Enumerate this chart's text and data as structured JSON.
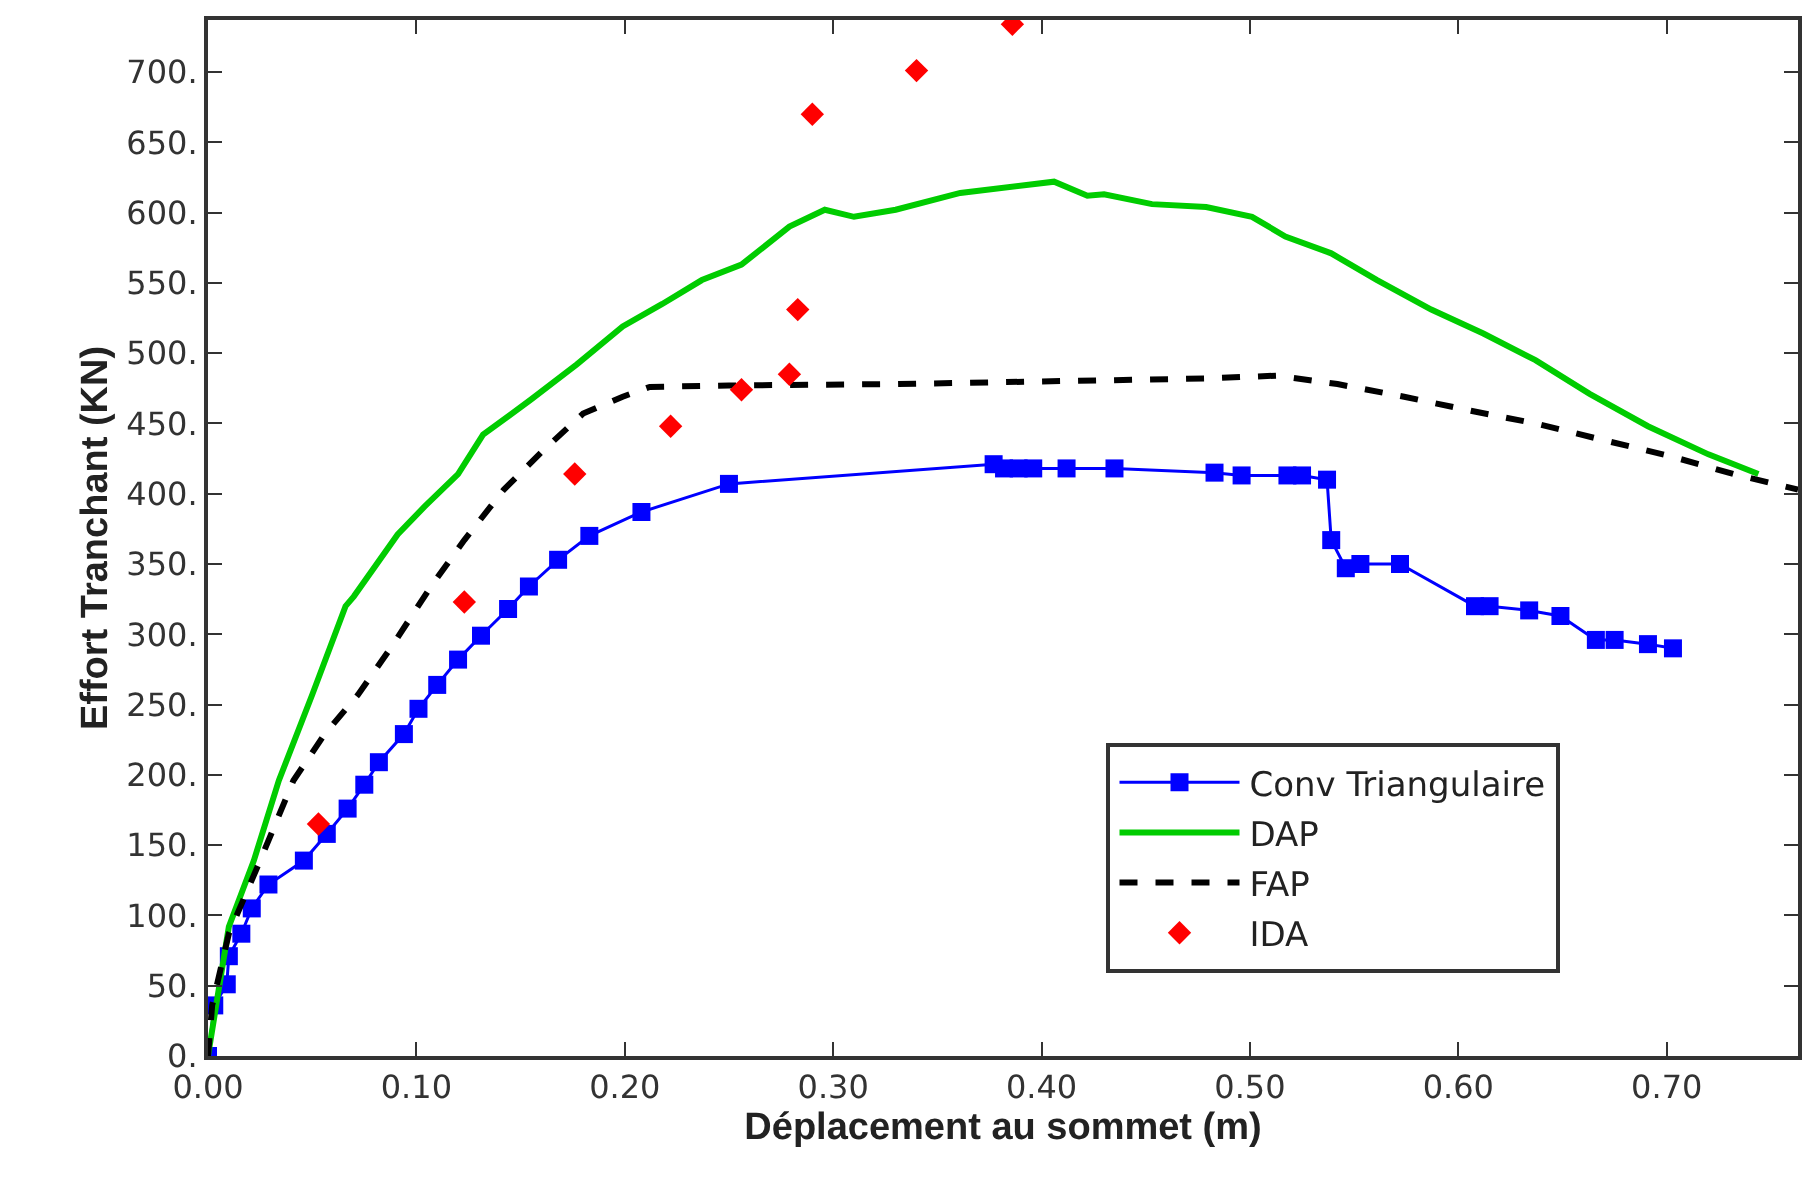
{
  "chart_data": {
    "type": "line",
    "xlabel": "Déplacement au sommet (m)",
    "ylabel": "Effort Tranchant (KN)",
    "xlim": [
      0,
      0.763
    ],
    "ylim": [
      0,
      737
    ],
    "xticks": [
      {
        "value": 0,
        "label": "0.00"
      },
      {
        "value": 0.1,
        "label": "0.10"
      },
      {
        "value": 0.2,
        "label": "0.20"
      },
      {
        "value": 0.3,
        "label": "0.30"
      },
      {
        "value": 0.4,
        "label": "0.40"
      },
      {
        "value": 0.5,
        "label": "0.50"
      },
      {
        "value": 0.6,
        "label": "0.60"
      },
      {
        "value": 0.7,
        "label": "0.70"
      }
    ],
    "yticks": [
      {
        "value": 0,
        "label": "0."
      },
      {
        "value": 50,
        "label": "50."
      },
      {
        "value": 100,
        "label": "100."
      },
      {
        "value": 150,
        "label": "150."
      },
      {
        "value": 200,
        "label": "200."
      },
      {
        "value": 250,
        "label": "250."
      },
      {
        "value": 300,
        "label": "300."
      },
      {
        "value": 350,
        "label": "350."
      },
      {
        "value": 400,
        "label": "400."
      },
      {
        "value": 450,
        "label": "450."
      },
      {
        "value": 500,
        "label": "500."
      },
      {
        "value": 550,
        "label": "550."
      },
      {
        "value": 600,
        "label": "600."
      },
      {
        "value": 650,
        "label": "650."
      },
      {
        "value": 700,
        "label": "700."
      }
    ],
    "legend": "bottom right",
    "series": [
      {
        "name": "Conv Triangulaire",
        "color": "#0000ff",
        "marker": "square",
        "line_style": "solid",
        "x": [
          0,
          0.003,
          0.009,
          0.01,
          0.016,
          0.021,
          0.029,
          0.046,
          0.057,
          0.067,
          0.075,
          0.082,
          0.094,
          0.101,
          0.11,
          0.12,
          0.131,
          0.144,
          0.154,
          0.168,
          0.183,
          0.208,
          0.25,
          0.377,
          0.382,
          0.389,
          0.396,
          0.412,
          0.435,
          0.483,
          0.496,
          0.518,
          0.525,
          0.537,
          0.539,
          0.546,
          0.553,
          0.572,
          0.608,
          0.615,
          0.634,
          0.649,
          0.666,
          0.675,
          0.691,
          0.703
        ],
        "values": [
          0,
          36,
          51,
          71,
          87,
          105,
          122,
          139,
          158,
          176,
          193,
          209,
          229,
          247,
          264,
          282,
          299,
          318,
          334,
          353,
          370,
          387,
          407,
          421,
          418,
          418,
          418,
          418,
          418,
          415,
          413,
          413,
          413,
          410,
          367,
          347,
          350,
          350,
          320,
          320,
          317,
          313,
          296,
          296,
          293,
          290
        ]
      },
      {
        "name": "DAP",
        "color": "#00cc00",
        "marker": "none",
        "line_style": "solid",
        "x": [
          0,
          0.01,
          0.022,
          0.034,
          0.05,
          0.066,
          0.07,
          0.091,
          0.104,
          0.12,
          0.132,
          0.155,
          0.177,
          0.199,
          0.218,
          0.237,
          0.256,
          0.279,
          0.296,
          0.31,
          0.33,
          0.361,
          0.406,
          0.422,
          0.43,
          0.453,
          0.479,
          0.501,
          0.517,
          0.539,
          0.561,
          0.587,
          0.612,
          0.637,
          0.663,
          0.691,
          0.72,
          0.744
        ],
        "values": [
          0,
          92,
          139,
          196,
          257,
          320,
          327,
          371,
          391,
          414,
          442,
          467,
          492,
          519,
          535,
          552,
          563,
          590,
          602,
          597,
          602,
          614,
          622,
          612,
          613,
          606,
          604,
          597,
          583,
          571,
          552,
          531,
          514,
          495,
          471,
          448,
          428,
          414
        ]
      },
      {
        "name": "FAP",
        "color": "#000000",
        "marker": "none",
        "line_style": "dashed",
        "x": [
          0,
          0.002,
          0.01,
          0.025,
          0.041,
          0.056,
          0.072,
          0.088,
          0.107,
          0.123,
          0.142,
          0.161,
          0.18,
          0.199,
          0.212,
          0.25,
          0.33,
          0.479,
          0.513,
          0.542,
          0.574,
          0.606,
          0.637,
          0.67,
          0.701,
          0.732,
          0.763
        ],
        "values": [
          0,
          36,
          87,
          139,
          196,
          229,
          257,
          291,
          334,
          367,
          403,
          431,
          457,
          469,
          476,
          477,
          478,
          482,
          484,
          478,
          469,
          459,
          450,
          438,
          427,
          414,
          403
        ]
      },
      {
        "name": "IDA",
        "type": "scatter",
        "color": "#ff0000",
        "marker": "diamond",
        "x": [
          0.053,
          0.123,
          0.176,
          0.222,
          0.256,
          0.279,
          0.283,
          0.29,
          0.34,
          0.386
        ],
        "values": [
          165,
          323,
          414,
          448,
          474,
          485,
          531,
          670,
          701,
          734
        ]
      }
    ]
  }
}
